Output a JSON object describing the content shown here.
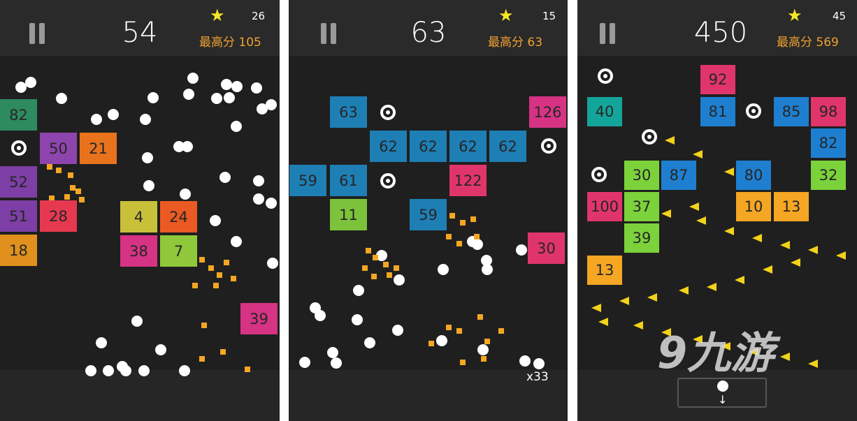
{
  "colors": {
    "background": "#1f1f1f",
    "header": "#2a2a2a",
    "best_score": "#f0a030",
    "star": "#f4e629",
    "ball": "#ffffff",
    "particle": "#f5a623",
    "arrow": "#f2d21a"
  },
  "panels": [
    {
      "score": "54",
      "stars": "26",
      "best_label": "最高分",
      "best_value": "105",
      "blocks": [
        {
          "value": "82",
          "color": "#2e8b5f"
        },
        {
          "value": "50",
          "color": "#8e44ad"
        },
        {
          "value": "21",
          "color": "#e8731c"
        },
        {
          "value": "52",
          "color": "#7d3fa5"
        },
        {
          "value": "51",
          "color": "#7d3fa5"
        },
        {
          "value": "28",
          "color": "#e63950"
        },
        {
          "value": "18",
          "color": "#e0901c"
        },
        {
          "value": "4",
          "color": "#c9c03a"
        },
        {
          "value": "24",
          "color": "#ea5a22"
        },
        {
          "value": "38",
          "color": "#d63384"
        },
        {
          "value": "7",
          "color": "#8fc93a"
        },
        {
          "value": "39",
          "color": "#d63384"
        }
      ]
    },
    {
      "score": "63",
      "stars": "15",
      "best_label": "最高分",
      "best_value": "63",
      "ball_count": "x33",
      "blocks": [
        {
          "value": "63",
          "color": "#1e7fb5"
        },
        {
          "value": "62",
          "color": "#1e7fb5"
        },
        {
          "value": "62",
          "color": "#1e7fb5"
        },
        {
          "value": "62",
          "color": "#1e7fb5"
        },
        {
          "value": "62",
          "color": "#1e7fb5"
        },
        {
          "value": "126",
          "color": "#d63384"
        },
        {
          "value": "59",
          "color": "#1e7fb5"
        },
        {
          "value": "61",
          "color": "#1e7fb5"
        },
        {
          "value": "122",
          "color": "#e0356b"
        },
        {
          "value": "11",
          "color": "#7cc23a"
        },
        {
          "value": "59",
          "color": "#1e7fb5"
        },
        {
          "value": "30",
          "color": "#e0356b"
        }
      ]
    },
    {
      "score": "450",
      "stars": "45",
      "best_label": "最高分",
      "best_value": "569",
      "blocks": [
        {
          "value": "92",
          "color": "#e0356b"
        },
        {
          "value": "40",
          "color": "#14a59a"
        },
        {
          "value": "81",
          "color": "#1e7fd0"
        },
        {
          "value": "85",
          "color": "#1e7fd0"
        },
        {
          "value": "98",
          "color": "#e0356b"
        },
        {
          "value": "82",
          "color": "#1e7fd0"
        },
        {
          "value": "30",
          "color": "#7cd23a"
        },
        {
          "value": "87",
          "color": "#1e7fd0"
        },
        {
          "value": "80",
          "color": "#1e7fd0"
        },
        {
          "value": "32",
          "color": "#7cd23a"
        },
        {
          "value": "100",
          "color": "#e0356b"
        },
        {
          "value": "37",
          "color": "#7cd23a"
        },
        {
          "value": "10",
          "color": "#f5a623"
        },
        {
          "value": "13",
          "color": "#f5a623"
        },
        {
          "value": "39",
          "color": "#7cd23a"
        },
        {
          "value": "13",
          "color": "#f5a623"
        }
      ]
    }
  ],
  "watermark": "9九游",
  "icons": {
    "pause": "pause-icon",
    "star": "star-icon",
    "ring": "extra-ball-ring-icon",
    "launch": "arrow-down-icon"
  }
}
